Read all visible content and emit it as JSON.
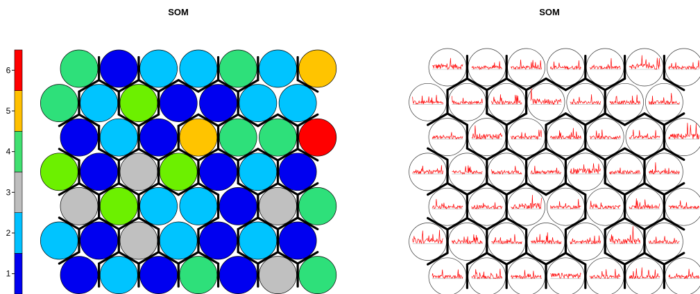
{
  "chart_data": [
    {
      "type": "heatmap",
      "title": "SOM",
      "grid": {
        "rows": 7,
        "cols": 7,
        "topology": "hexagonal"
      },
      "legend": {
        "placement": "left",
        "ticks": [
          "1",
          "2",
          "3",
          "4",
          "5",
          "6"
        ],
        "colors": [
          "#0000f0",
          "#00c0ff",
          "#bebebe",
          "#40e070",
          "#ffc000",
          "#ff0000"
        ]
      },
      "palette": {
        "blue": "#0000f0",
        "cyan": "#00c4ff",
        "green": "#2ee07a",
        "lime": "#6cf000",
        "grey": "#c0c0c0",
        "gold": "#ffc400",
        "red": "#ff0000"
      },
      "cells_top_to_bottom": [
        [
          "green",
          "blue",
          "cyan",
          "cyan",
          "green",
          "cyan",
          "gold"
        ],
        [
          "green",
          "cyan",
          "lime",
          "blue",
          "blue",
          "cyan",
          "cyan"
        ],
        [
          "blue",
          "cyan",
          "blue",
          "gold",
          "green",
          "green",
          "red"
        ],
        [
          "lime",
          "blue",
          "grey",
          "lime",
          "blue",
          "cyan",
          "blue"
        ],
        [
          "grey",
          "lime",
          "cyan",
          "cyan",
          "blue",
          "grey",
          "green"
        ],
        [
          "cyan",
          "blue",
          "grey",
          "cyan",
          "blue",
          "cyan",
          "blue"
        ],
        [
          "blue",
          "cyan",
          "blue",
          "green",
          "blue",
          "grey",
          "green"
        ]
      ],
      "cluster_boundary_color": "#000000"
    },
    {
      "type": "line",
      "title": "SOM",
      "grid": {
        "rows": 7,
        "cols": 7,
        "topology": "hexagonal"
      },
      "series_color": "#ff0000",
      "baseline_color": "#a8a8a8",
      "cluster_boundary_color": "#000000"
    }
  ]
}
